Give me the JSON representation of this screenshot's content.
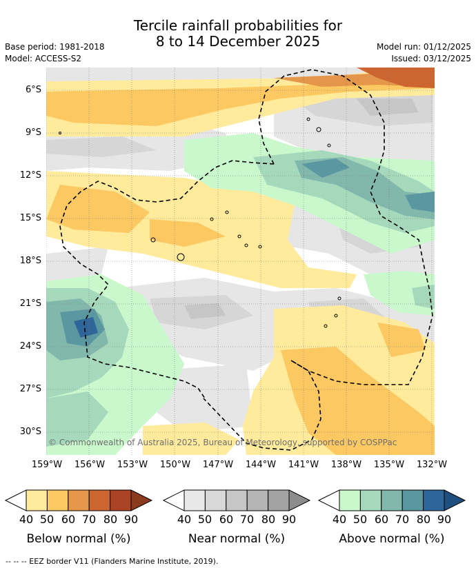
{
  "title": {
    "line1": "Tercile rainfall probabilities for",
    "line2": "8 to 14 December 2025"
  },
  "meta": {
    "base_period": "Base period: 1981-2018",
    "model": "Model: ACCESS-S2",
    "model_run": "Model run: 01/12/2025",
    "issued": "Issued: 03/12/2025"
  },
  "map": {
    "lat_labels": [
      "6°S",
      "9°S",
      "12°S",
      "15°S",
      "18°S",
      "21°S",
      "24°S",
      "27°S",
      "30°S"
    ],
    "lon_labels": [
      "159°W",
      "156°W",
      "153°W",
      "150°W",
      "147°W",
      "144°W",
      "141°W",
      "138°W",
      "135°W",
      "132°W"
    ],
    "copyright": "© Commonwealth of Australia 2025, Bureau of Meteorology, supported by COSPPac"
  },
  "legend": {
    "below": {
      "title": "Below normal (%)",
      "ticks": [
        "40",
        "50",
        "60",
        "70",
        "80",
        "90"
      ],
      "colors": [
        "#ffeb9b",
        "#fcc862",
        "#e4974a",
        "#cd6531",
        "#aa4424"
      ]
    },
    "near": {
      "title": "Near normal (%)",
      "ticks": [
        "40",
        "50",
        "60",
        "70",
        "80",
        "90"
      ],
      "colors": [
        "#e8e8e8",
        "#d8d8d8",
        "#c6c6c6",
        "#b4b4b4",
        "#a2a2a2"
      ]
    },
    "above": {
      "title": "Above normal (%)",
      "ticks": [
        "40",
        "50",
        "60",
        "70",
        "80",
        "90"
      ],
      "colors": [
        "#c8f8cb",
        "#a6d8bb",
        "#82b8ab",
        "#5b97a0",
        "#2f6699"
      ]
    }
  },
  "eez_note": "--  --  -- EEZ border V11 (Flanders Marine Institute, 2019)."
}
